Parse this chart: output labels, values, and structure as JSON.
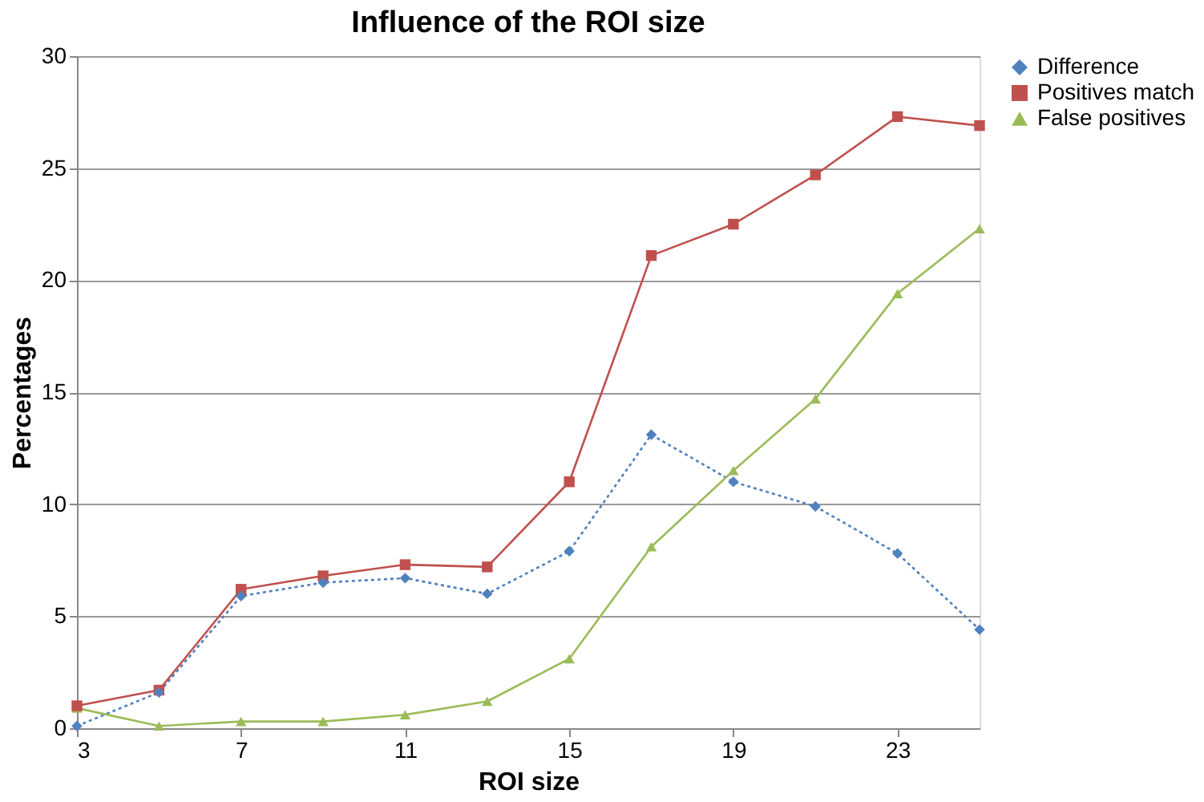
{
  "chart_data": {
    "type": "line",
    "title": "Influence of the ROI size",
    "xlabel": "ROI size",
    "ylabel": "Percentages",
    "x": [
      3,
      5,
      7,
      9,
      11,
      13,
      15,
      17,
      19,
      21,
      23,
      25
    ],
    "xlim": [
      3,
      25
    ],
    "xticks": [
      3,
      7,
      11,
      15,
      19,
      23
    ],
    "ylim": [
      0,
      30
    ],
    "yticks": [
      0,
      5,
      10,
      15,
      20,
      25,
      30
    ],
    "grid": "y",
    "legend": "right",
    "series": [
      {
        "name": "Difference",
        "color": "#4f81bd",
        "marker": "diamond",
        "line_style": "dotted",
        "values": [
          0.1,
          1.6,
          5.9,
          6.5,
          6.7,
          6.0,
          7.9,
          13.1,
          11.0,
          9.9,
          7.8,
          4.4
        ]
      },
      {
        "name": "Positives match",
        "color": "#c0504d",
        "marker": "square",
        "line_style": "solid",
        "values": [
          1.0,
          1.7,
          6.2,
          6.8,
          7.3,
          7.2,
          11.0,
          21.1,
          22.5,
          24.7,
          27.3,
          26.9
        ]
      },
      {
        "name": "False positives",
        "color": "#9bbb59",
        "marker": "triangle",
        "line_style": "solid",
        "values": [
          0.9,
          0.1,
          0.3,
          0.3,
          0.6,
          1.2,
          3.1,
          8.1,
          11.5,
          14.7,
          19.4,
          22.3
        ]
      }
    ]
  }
}
